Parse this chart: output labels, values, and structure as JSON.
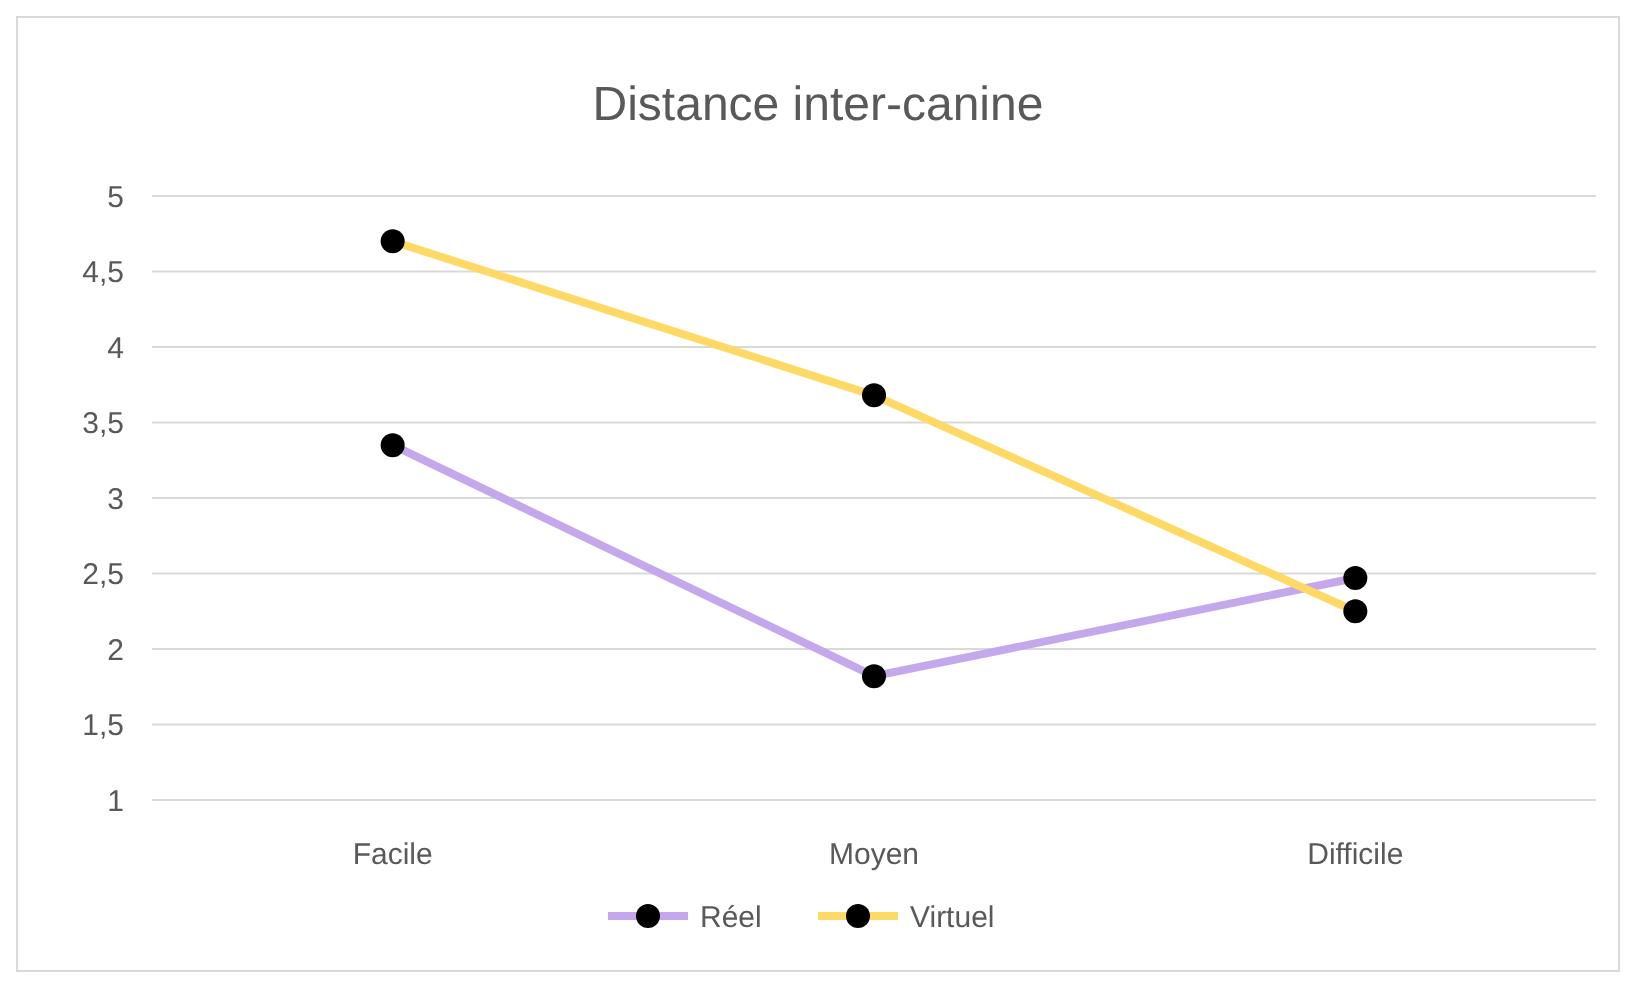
{
  "chart_data": {
    "type": "line",
    "title": "Distance inter-canine",
    "categories": [
      "Facile",
      "Moyen",
      "Difficile"
    ],
    "series": [
      {
        "name": "Réel",
        "color": "#c5a8ec",
        "values": [
          3.35,
          1.82,
          2.47
        ]
      },
      {
        "name": "Virtuel",
        "color": "#ffd966",
        "values": [
          4.7,
          3.68,
          2.25
        ]
      }
    ],
    "ylim": [
      1,
      5
    ],
    "yticks": [
      1,
      {
        "value": 1.5,
        "label": "1,5"
      },
      2,
      {
        "value": 2.5,
        "label": "2,5"
      },
      3,
      {
        "value": 3.5,
        "label": "3,5"
      },
      4,
      {
        "value": 4.5,
        "label": "4,5"
      },
      5
    ],
    "grid": "y",
    "legend": "bottom",
    "marker": "circle",
    "line_style": "solid"
  }
}
